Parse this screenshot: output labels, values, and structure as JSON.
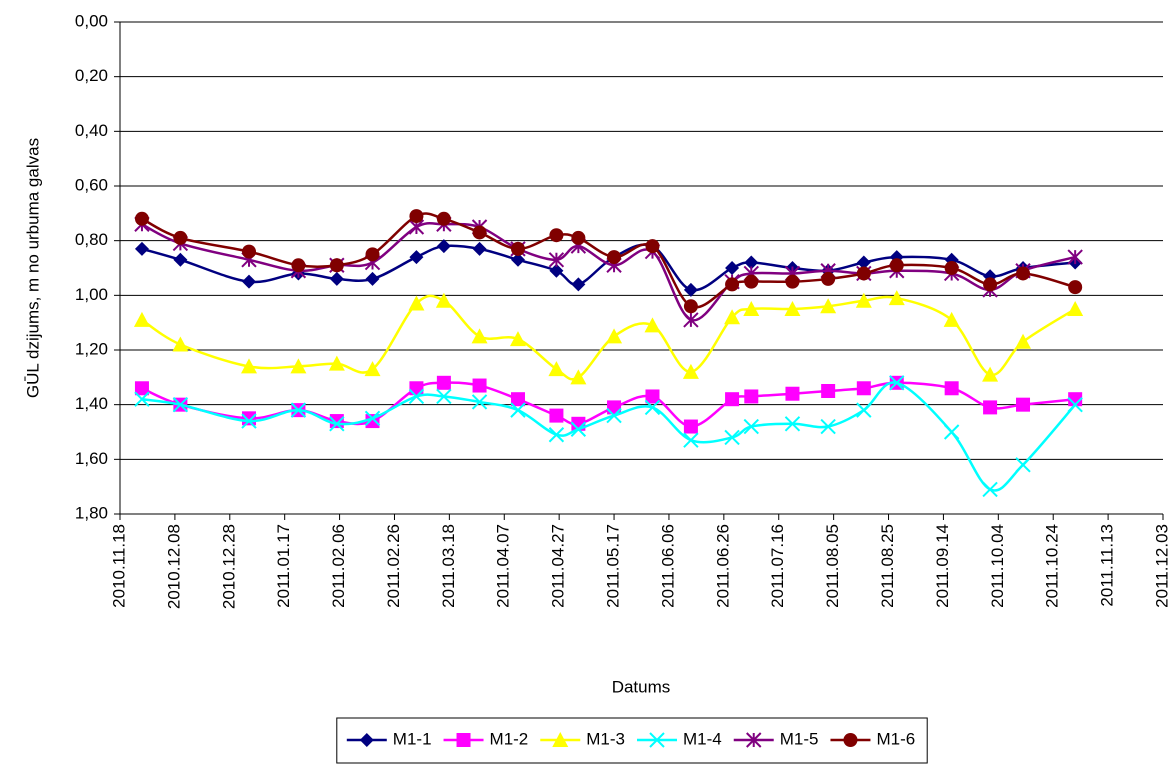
{
  "chart_data": {
    "type": "line",
    "y_label": "GŪL dzijums, m no urbuma galvas",
    "x_label": "Datums",
    "x": [
      "2010-11-26",
      "2010-12-10",
      "2011-01-04",
      "2011-01-22",
      "2011-02-05",
      "2011-02-18",
      "2011-03-06",
      "2011-03-16",
      "2011-03-29",
      "2011-04-12",
      "2011-04-26",
      "2011-05-04",
      "2011-05-17",
      "2011-05-31",
      "2011-06-14",
      "2011-06-29",
      "2011-07-06",
      "2011-07-21",
      "2011-08-03",
      "2011-08-16",
      "2011-08-28",
      "2011-09-17",
      "2011-10-01",
      "2011-10-13",
      "2011-11-01"
    ],
    "series": [
      {
        "name": "M1-1",
        "color": "#000080",
        "marker": "diamond",
        "values": [
          0.83,
          0.87,
          0.95,
          0.92,
          0.94,
          0.94,
          0.86,
          0.82,
          0.83,
          0.87,
          0.91,
          0.96,
          0.86,
          0.82,
          0.98,
          0.9,
          0.88,
          0.9,
          0.91,
          0.88,
          0.86,
          0.87,
          0.93,
          0.9,
          0.88
        ]
      },
      {
        "name": "M1-2",
        "color": "#ff00ff",
        "marker": "square",
        "values": [
          1.34,
          1.4,
          1.45,
          1.42,
          1.46,
          1.46,
          1.34,
          1.32,
          1.33,
          1.38,
          1.44,
          1.47,
          1.41,
          1.37,
          1.48,
          1.38,
          1.37,
          1.36,
          1.35,
          1.34,
          1.32,
          1.34,
          1.41,
          1.4,
          1.38
        ]
      },
      {
        "name": "M1-3",
        "color": "#ffff00",
        "marker": "triangle",
        "values": [
          1.09,
          1.18,
          1.26,
          1.26,
          1.25,
          1.27,
          1.03,
          1.02,
          1.15,
          1.16,
          1.27,
          1.3,
          1.15,
          1.11,
          1.28,
          1.08,
          1.05,
          1.05,
          1.04,
          1.02,
          1.01,
          1.09,
          1.29,
          1.17,
          1.05
        ]
      },
      {
        "name": "M1-4",
        "color": "#00ffff",
        "marker": "x",
        "values": [
          1.38,
          1.4,
          1.46,
          1.42,
          1.47,
          1.45,
          1.37,
          1.37,
          1.39,
          1.42,
          1.51,
          1.49,
          1.44,
          1.41,
          1.53,
          1.52,
          1.48,
          1.47,
          1.48,
          1.42,
          1.32,
          1.5,
          1.71,
          1.62,
          1.4
        ]
      },
      {
        "name": "M1-5",
        "color": "#800080",
        "marker": "star",
        "values": [
          0.74,
          0.81,
          0.87,
          0.91,
          0.89,
          0.88,
          0.75,
          0.74,
          0.75,
          0.83,
          0.87,
          0.82,
          0.89,
          0.84,
          1.09,
          0.95,
          0.92,
          0.92,
          0.91,
          0.92,
          0.91,
          0.92,
          0.98,
          0.91,
          0.86
        ]
      },
      {
        "name": "M1-6",
        "color": "#800000",
        "marker": "circle",
        "values": [
          0.72,
          0.79,
          0.84,
          0.89,
          0.89,
          0.85,
          0.71,
          0.72,
          0.77,
          0.83,
          0.78,
          0.79,
          0.86,
          0.82,
          1.04,
          0.96,
          0.95,
          0.95,
          0.94,
          0.92,
          0.89,
          0.9,
          0.96,
          0.92,
          0.97
        ]
      }
    ],
    "xlim": [
      "2010-11-18",
      "2011-12-03"
    ],
    "xticks": [
      {
        "value": "2010-11-18",
        "label": "2010.11.18"
      },
      {
        "value": "2010-12-08",
        "label": "2010.12.08"
      },
      {
        "value": "2010-12-28",
        "label": "2010.12.28"
      },
      {
        "value": "2011-01-17",
        "label": "2011.01.17"
      },
      {
        "value": "2011-02-06",
        "label": "2011.02.06"
      },
      {
        "value": "2011-02-26",
        "label": "2011.02.26"
      },
      {
        "value": "2011-03-18",
        "label": "2011.03.18"
      },
      {
        "value": "2011-04-07",
        "label": "2011.04.07"
      },
      {
        "value": "2011-04-27",
        "label": "2011.04.27"
      },
      {
        "value": "2011-05-17",
        "label": "2011.05.17"
      },
      {
        "value": "2011-06-06",
        "label": "2011.06.06"
      },
      {
        "value": "2011-06-26",
        "label": "2011.06.26"
      },
      {
        "value": "2011-07-16",
        "label": "2011.07.16"
      },
      {
        "value": "2011-08-05",
        "label": "2011.08.05"
      },
      {
        "value": "2011-08-25",
        "label": "2011.08.25"
      },
      {
        "value": "2011-09-14",
        "label": "2011.09.14"
      },
      {
        "value": "2011-10-04",
        "label": "2011.10.04"
      },
      {
        "value": "2011-10-24",
        "label": "2011.10.24"
      },
      {
        "value": "2011-11-13",
        "label": "2011.11.13"
      },
      {
        "value": "2011-12-03",
        "label": "2011.12.03"
      }
    ],
    "ylim": [
      0,
      1.8
    ],
    "y_reversed": true,
    "yticks": [
      {
        "value": 0,
        "label": "0,00"
      },
      {
        "value": 0.2,
        "label": "0,20"
      },
      {
        "value": 0.4,
        "label": "0,40"
      },
      {
        "value": 0.6,
        "label": "0,60"
      },
      {
        "value": 0.8,
        "label": "0,80"
      },
      {
        "value": 1.0,
        "label": "1,00"
      },
      {
        "value": 1.2,
        "label": "1,20"
      },
      {
        "value": 1.4,
        "label": "1,40"
      },
      {
        "value": 1.6,
        "label": "1,60"
      },
      {
        "value": 1.8,
        "label": "1,80"
      }
    ],
    "grid": true,
    "smooth": true,
    "legend": "bottom"
  }
}
